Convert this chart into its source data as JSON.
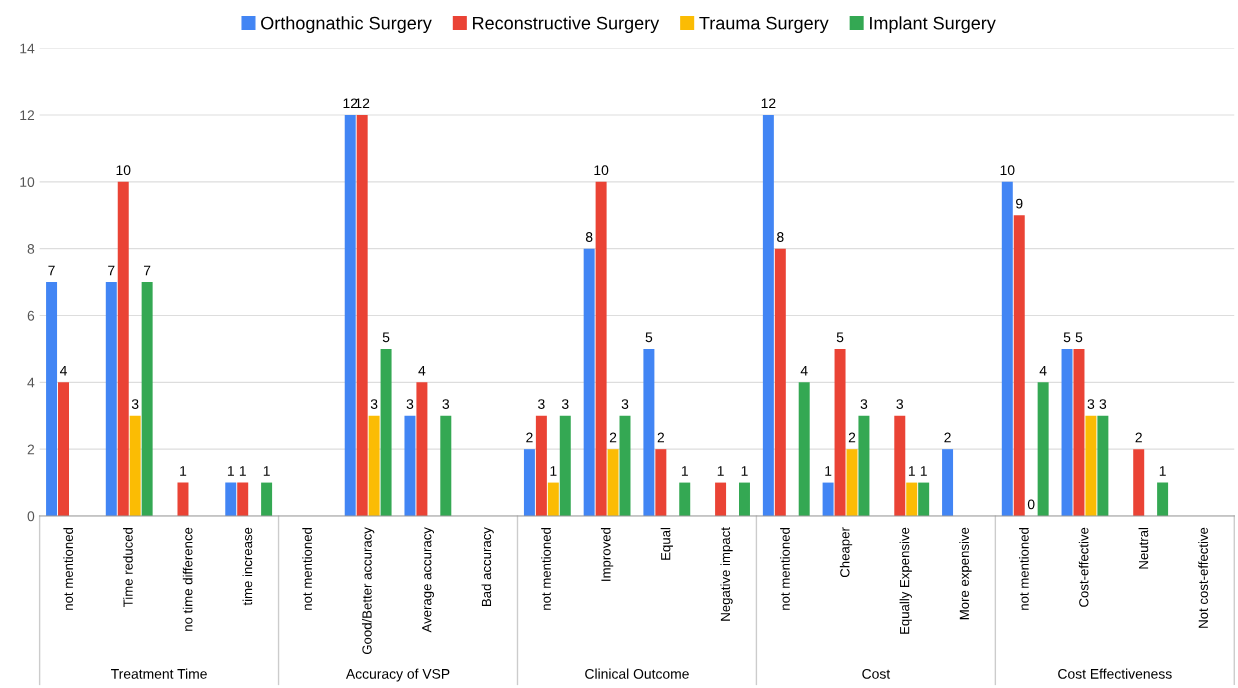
{
  "chart_data": {
    "type": "bar",
    "categories": [
      "not mentioned",
      "Time reduced",
      "no time difference",
      "time increase",
      "not mentioned",
      "Good/Better accuracy",
      "Average accuracy",
      "Bad accuracy",
      "not mentioned",
      "Improved",
      "Equal",
      "Negative impact",
      "not mentioned",
      "Cheaper",
      "Equally Expensive",
      "More expensive",
      "not mentioned",
      "Cost-effective",
      "Neutral",
      "Not cost-effective"
    ],
    "annotations": [
      "Treatment Time",
      "Accuracy of VSP",
      "Clinical Outcome",
      "Cost",
      "Cost Effectiveness"
    ],
    "series": [
      {
        "name": "Orthognathic Surgery",
        "color": "#4285f4",
        "values": [
          7,
          7,
          null,
          1,
          null,
          12,
          3,
          null,
          2,
          8,
          5,
          null,
          12,
          1,
          null,
          2,
          10,
          5,
          null,
          null
        ],
        "value_labels": [
          "7",
          "7",
          null,
          "1",
          null,
          "12",
          "3",
          null,
          "2",
          "8",
          "5",
          null,
          "12",
          "1",
          null,
          "2",
          "10",
          "5",
          null,
          null
        ]
      },
      {
        "name": "Reconstructive Surgery",
        "color": "#ea4335",
        "values": [
          4,
          10,
          1,
          1,
          null,
          12,
          4,
          null,
          3,
          10,
          2,
          1,
          8,
          5,
          3,
          null,
          9,
          5,
          2,
          null
        ],
        "value_labels": [
          "4",
          "10",
          "1",
          "1",
          null,
          "12",
          "4",
          null,
          "3",
          "10",
          "2",
          "1",
          "8",
          "5",
          "3",
          null,
          "9",
          "5",
          "2",
          null
        ]
      },
      {
        "name": "Trauma Surgery",
        "color": "#fbbc04",
        "values": [
          null,
          3,
          null,
          null,
          null,
          3,
          null,
          null,
          1,
          2,
          null,
          null,
          null,
          2,
          1,
          null,
          0,
          3,
          null,
          null
        ],
        "value_labels": [
          null,
          "3",
          null,
          null,
          null,
          "3",
          null,
          null,
          "1",
          "2",
          null,
          null,
          null,
          "2",
          "1",
          null,
          "0",
          "3",
          null,
          null
        ]
      },
      {
        "name": "Implant Surgery",
        "color": "#34a853",
        "values": [
          null,
          7,
          null,
          1,
          null,
          5,
          3,
          null,
          3,
          3,
          1,
          1,
          4,
          3,
          1,
          null,
          4,
          3,
          1,
          null
        ],
        "value_labels": [
          null,
          "7",
          null,
          "1",
          null,
          "5",
          "3",
          null,
          "3",
          "3",
          "1",
          "1",
          "4",
          "3",
          "1",
          null,
          "4",
          "3",
          "1",
          null
        ]
      }
    ],
    "ylim": [
      0,
      14
    ],
    "yticks": [
      0,
      2,
      4,
      6,
      8,
      10,
      12,
      14
    ],
    "grid": "y",
    "legend": "top"
  }
}
